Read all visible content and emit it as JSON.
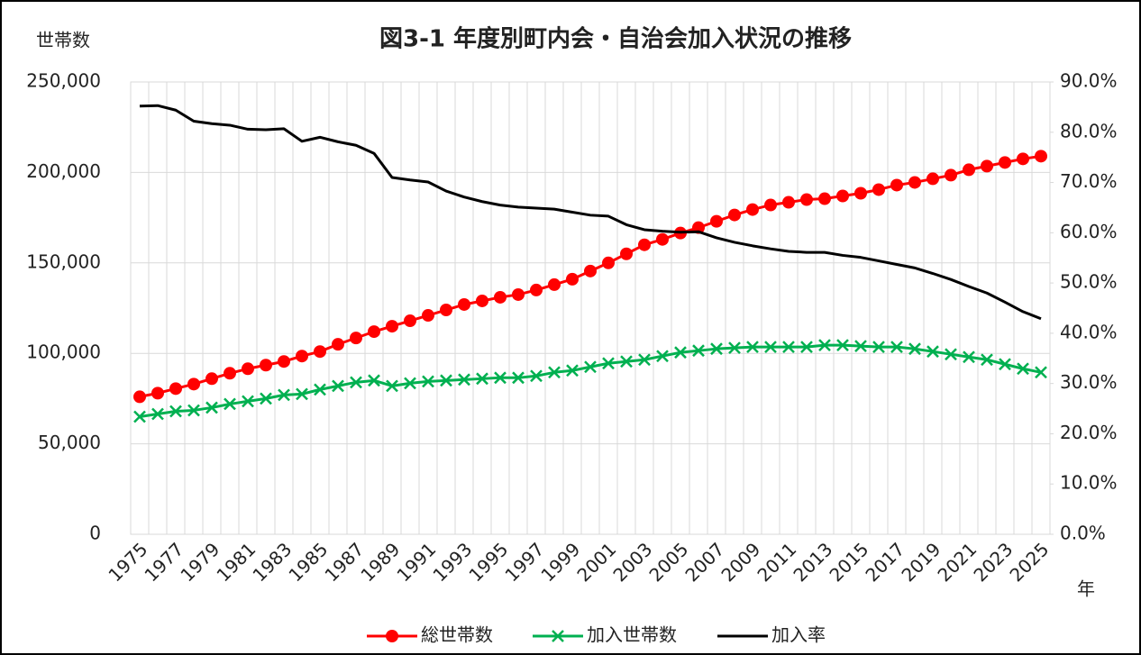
{
  "chart_data": {
    "type": "line",
    "title": "図3-1 年度別町内会・自治会加入状況の推移",
    "y_label": "世帯数",
    "x_label": "年",
    "categories": [
      "1975",
      null,
      "1977",
      null,
      "1979",
      null,
      "1981",
      null,
      "1983",
      null,
      "1985",
      null,
      "1987",
      null,
      "1989",
      null,
      "1991",
      null,
      "1993",
      null,
      "1995",
      null,
      "1997",
      null,
      "1999",
      null,
      "2001",
      null,
      "2003",
      null,
      "2005",
      null,
      "2007",
      null,
      "2009",
      null,
      "2011",
      null,
      "2013",
      null,
      "2015",
      null,
      "2017",
      null,
      "2019",
      null,
      "2021",
      null,
      "2023",
      null,
      "2025"
    ],
    "series": [
      {
        "name": "総世帯数",
        "color": "#ff0000",
        "marker": "circle",
        "values": [
          76000,
          78000,
          80500,
          83000,
          86000,
          89000,
          91500,
          93500,
          95500,
          98500,
          101000,
          105000,
          108500,
          112000,
          115000,
          118000,
          121000,
          124000,
          127000,
          129000,
          131000,
          132500,
          135000,
          138000,
          141000,
          145500,
          150000,
          155000,
          160000,
          163000,
          166500,
          169500,
          173000,
          176500,
          179500,
          182000,
          183500,
          185000,
          185500,
          187000,
          188500,
          190500,
          193000,
          194500,
          196500,
          198500,
          201500,
          203500,
          205500,
          207500,
          209000
        ]
      },
      {
        "name": "加入世帯数",
        "color": "#00b050",
        "marker": "x",
        "values": [
          65000,
          66500,
          68000,
          68500,
          70000,
          72000,
          73500,
          75000,
          77000,
          77500,
          80000,
          82000,
          84000,
          85000,
          82000,
          83500,
          84500,
          85000,
          85500,
          86000,
          86500,
          86500,
          87500,
          89500,
          90500,
          92500,
          94500,
          95500,
          96500,
          98500,
          100500,
          101500,
          102500,
          103000,
          103500,
          103500,
          103500,
          103500,
          104500,
          104500,
          104000,
          103500,
          103500,
          102500,
          101000,
          99500,
          98000,
          96500,
          94000,
          91500,
          89500
        ]
      },
      {
        "name": "加入率",
        "color": "#000000",
        "marker": "none",
        "axis": "y2",
        "values": [
          85.2,
          85.3,
          84.4,
          82.2,
          81.7,
          81.4,
          80.6,
          80.5,
          80.7,
          78.2,
          79.0,
          78.1,
          77.4,
          75.8,
          71.0,
          70.5,
          70.1,
          68.3,
          67.1,
          66.2,
          65.5,
          65.1,
          64.9,
          64.7,
          64.1,
          63.5,
          63.3,
          61.6,
          60.6,
          60.3,
          60.1,
          60.2,
          59.0,
          58.1,
          57.4,
          56.8,
          56.3,
          56.1,
          56.1,
          55.5,
          55.1,
          54.4,
          53.7,
          53.0,
          51.9,
          50.7,
          49.3,
          48.0,
          46.2,
          44.3,
          42.9
        ]
      }
    ],
    "ylim": [
      0,
      250000
    ],
    "yticks": [
      0,
      {
        "value": 50000,
        "label": "50,000"
      },
      {
        "value": 100000,
        "label": "100,000"
      },
      {
        "value": 150000,
        "label": "150,000"
      },
      {
        "value": 200000,
        "label": "200,000"
      },
      {
        "value": 250000,
        "label": "250,000"
      }
    ],
    "y2lim": [
      0,
      90
    ],
    "y2ticks": [
      {
        "value": 0,
        "label": "0.0%"
      },
      {
        "value": 10,
        "label": "10.0%"
      },
      {
        "value": 20,
        "label": "20.0%"
      },
      {
        "value": 30,
        "label": "30.0%"
      },
      {
        "value": 40,
        "label": "40.0%"
      },
      {
        "value": 50,
        "label": "50.0%"
      },
      {
        "value": 60,
        "label": "60.0%"
      },
      {
        "value": 70,
        "label": "70.0%"
      },
      {
        "value": 80,
        "label": "80.0%"
      },
      {
        "value": 90,
        "label": "90.0%"
      }
    ],
    "grid": true,
    "legend": "bottom"
  }
}
